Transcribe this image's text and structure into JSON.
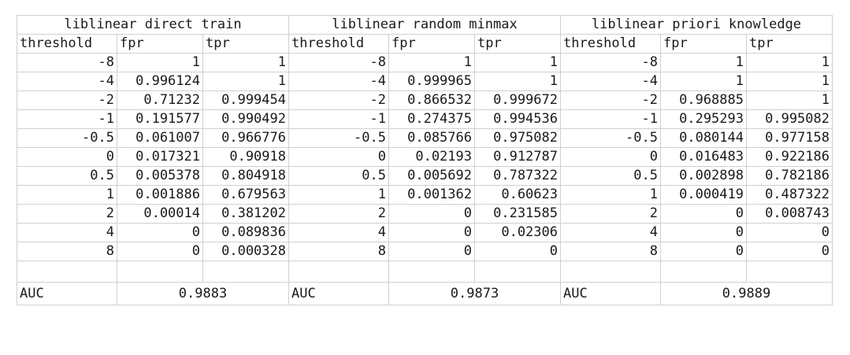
{
  "groups": [
    {
      "title": "liblinear direct train",
      "headers": [
        "threshold",
        "fpr",
        "tpr"
      ],
      "rows": [
        [
          "-8",
          "1",
          "1"
        ],
        [
          "-4",
          "0.996124",
          "1"
        ],
        [
          "-2",
          "0.71232",
          "0.999454"
        ],
        [
          "-1",
          "0.191577",
          "0.990492"
        ],
        [
          "-0.5",
          "0.061007",
          "0.966776"
        ],
        [
          "0",
          "0.017321",
          "0.90918"
        ],
        [
          "0.5",
          "0.005378",
          "0.804918"
        ],
        [
          "1",
          "0.001886",
          "0.679563"
        ],
        [
          "2",
          "0.00014",
          "0.381202"
        ],
        [
          "4",
          "0",
          "0.089836"
        ],
        [
          "8",
          "0",
          "0.000328"
        ]
      ],
      "auc_label": "AUC",
      "auc_value": "0.9883"
    },
    {
      "title": "liblinear random minmax",
      "headers": [
        "threshold",
        "fpr",
        "tpr"
      ],
      "rows": [
        [
          "-8",
          "1",
          "1"
        ],
        [
          "-4",
          "0.999965",
          "1"
        ],
        [
          "-2",
          "0.866532",
          "0.999672"
        ],
        [
          "-1",
          "0.274375",
          "0.994536"
        ],
        [
          "-0.5",
          "0.085766",
          "0.975082"
        ],
        [
          "0",
          "0.02193",
          "0.912787"
        ],
        [
          "0.5",
          "0.005692",
          "0.787322"
        ],
        [
          "1",
          "0.001362",
          "0.60623"
        ],
        [
          "2",
          "0",
          "0.231585"
        ],
        [
          "4",
          "0",
          "0.02306"
        ],
        [
          "8",
          "0",
          "0"
        ]
      ],
      "auc_label": "AUC",
      "auc_value": "0.9873"
    },
    {
      "title": "liblinear priori knowledge",
      "headers": [
        "threshold",
        "fpr",
        "tpr"
      ],
      "rows": [
        [
          "-8",
          "1",
          "1"
        ],
        [
          "-4",
          "1",
          "1"
        ],
        [
          "-2",
          "0.968885",
          "1"
        ],
        [
          "-1",
          "0.295293",
          "0.995082"
        ],
        [
          "-0.5",
          "0.080144",
          "0.977158"
        ],
        [
          "0",
          "0.016483",
          "0.922186"
        ],
        [
          "0.5",
          "0.002898",
          "0.782186"
        ],
        [
          "1",
          "0.000419",
          "0.487322"
        ],
        [
          "2",
          "0",
          "0.008743"
        ],
        [
          "4",
          "0",
          "0"
        ],
        [
          "8",
          "0",
          "0"
        ]
      ],
      "auc_label": "AUC",
      "auc_value": "0.9889"
    }
  ]
}
